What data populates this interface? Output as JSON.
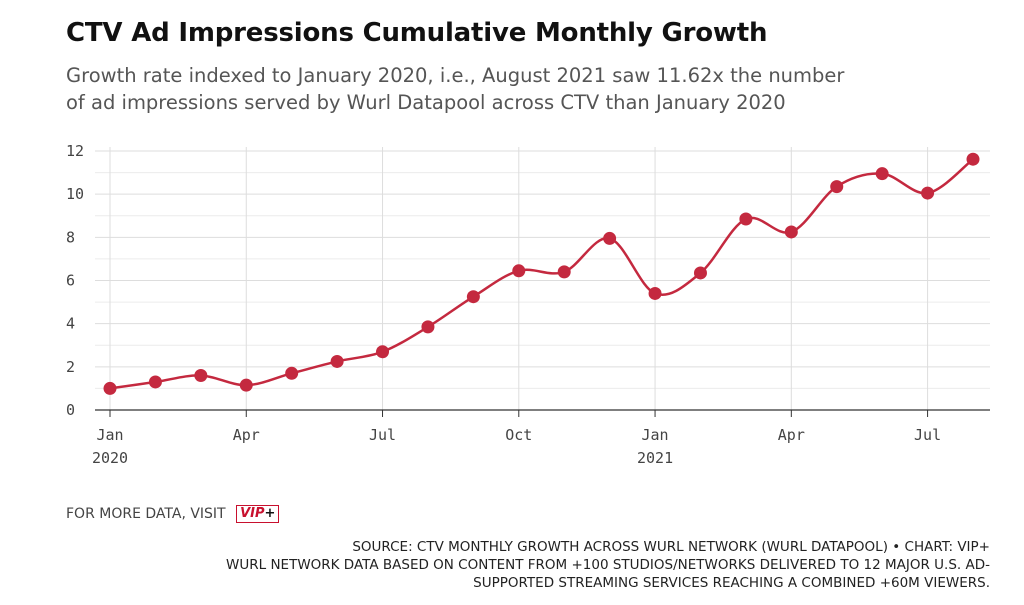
{
  "header": {
    "title": "CTV Ad Impressions Cumulative Monthly Growth",
    "subtitle": "Growth rate indexed to January 2020, i.e., August 2021 saw 11.62x the number of ad impressions served by Wurl Datapool across CTV than January 2020"
  },
  "chart_data": {
    "type": "line",
    "title": "CTV Ad Impressions Cumulative Monthly Growth",
    "subtitle": "Growth rate indexed to January 2020, i.e., August 2021 saw 11.62x the number of ad impressions served by Wurl Datapool across CTV than January 2020",
    "xlabel": "",
    "ylabel": "",
    "x": [
      "2020-01",
      "2020-02",
      "2020-03",
      "2020-04",
      "2020-05",
      "2020-06",
      "2020-07",
      "2020-08",
      "2020-09",
      "2020-10",
      "2020-11",
      "2020-12",
      "2021-01",
      "2021-02",
      "2021-03",
      "2021-04",
      "2021-05",
      "2021-06",
      "2021-07",
      "2021-08"
    ],
    "series": [
      {
        "values": [
          1.0,
          1.3,
          1.6,
          1.15,
          1.7,
          2.25,
          2.7,
          3.85,
          5.25,
          6.45,
          6.4,
          7.95,
          5.4,
          6.35,
          8.85,
          8.25,
          10.35,
          10.95,
          10.05,
          11.62
        ]
      }
    ],
    "ylim": [
      0,
      12
    ],
    "yticks": [
      "0",
      "2",
      "4",
      "6",
      "8",
      "10",
      "12"
    ],
    "xticks": [
      {
        "x": "2020-01",
        "label": "Jan",
        "sublabel": "2020"
      },
      {
        "x": "2020-04",
        "label": "Apr",
        "sublabel": ""
      },
      {
        "x": "2020-07",
        "label": "Jul",
        "sublabel": ""
      },
      {
        "x": "2020-10",
        "label": "Oct",
        "sublabel": ""
      },
      {
        "x": "2021-01",
        "label": "Jan",
        "sublabel": "2021"
      },
      {
        "x": "2021-04",
        "label": "Apr",
        "sublabel": ""
      },
      {
        "x": "2021-07",
        "label": "Jul",
        "sublabel": ""
      }
    ],
    "grid": true,
    "line_color": "#c4293f",
    "grid_color": "#dddddd"
  },
  "footer": {
    "more_text": "FOR MORE DATA, VISIT",
    "vip_label": "VIP",
    "vip_plus": "+",
    "vip_color": "#c8102e",
    "source_line1": "SOURCE: CTV MONTHLY GROWTH ACROSS WURL NETWORK (WURL DATAPOOL) • CHART: VIP+",
    "source_line2": "WURL NETWORK DATA BASED ON CONTENT FROM +100 STUDIOS/NETWORKS DELIVERED TO 12 MAJOR U.S. AD-",
    "source_line3": "SUPPORTED STREAMING SERVICES REACHING A COMBINED +60M VIEWERS."
  }
}
